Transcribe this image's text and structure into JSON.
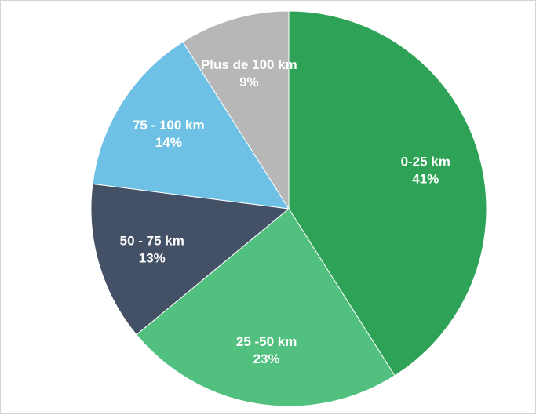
{
  "chart_data": {
    "type": "pie",
    "slices": [
      {
        "label": "0-25 km",
        "value": 41,
        "value_label": "41%",
        "color": "#2ea357"
      },
      {
        "label": "25 -50 km",
        "value": 23,
        "value_label": "23%",
        "color": "#52c07f"
      },
      {
        "label": "50 - 75 km",
        "value": 13,
        "value_label": "13%",
        "color": "#435066"
      },
      {
        "label": "75 - 100 km",
        "value": 14,
        "value_label": "14%",
        "color": "#6ec1e4"
      },
      {
        "label": "Plus de 100 km",
        "value": 9,
        "value_label": "9%",
        "color": "#b7b7b7"
      }
    ],
    "start_angle_deg": 0,
    "direction": "clockwise",
    "legend": "none"
  }
}
